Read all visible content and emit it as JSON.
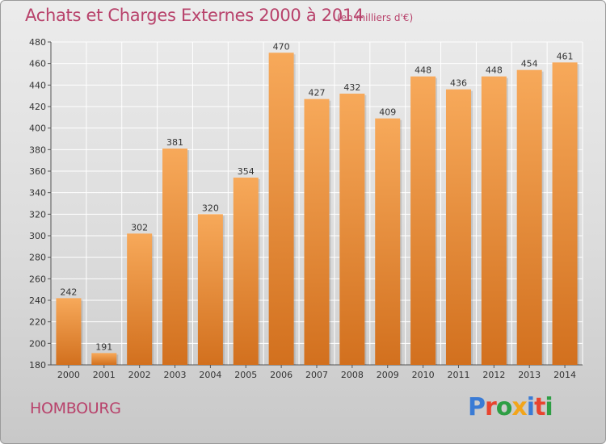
{
  "header": {
    "title": "Achats et Charges Externes 2000 à 2014",
    "subtitle": "(en milliers d'€)"
  },
  "footer": {
    "city": "HOMBOURG",
    "logo_text": "Proxiti",
    "logo_colors": [
      "#3a7bd5",
      "#e8442e",
      "#2e9e44",
      "#f2a51a",
      "#3a7bd5",
      "#e8442e",
      "#2e9e44"
    ]
  },
  "colors": {
    "title": "#b8426b",
    "bar_top": "#f7a95a",
    "bar_bottom": "#d2701e",
    "grid": "#ffffff"
  },
  "chart_data": {
    "type": "bar",
    "categories": [
      "2000",
      "2001",
      "2002",
      "2003",
      "2004",
      "2005",
      "2006",
      "2007",
      "2008",
      "2009",
      "2010",
      "2011",
      "2012",
      "2013",
      "2014"
    ],
    "values": [
      242,
      191,
      302,
      381,
      320,
      354,
      470,
      427,
      432,
      409,
      448,
      436,
      448,
      454,
      461
    ],
    "ylim": [
      180,
      480
    ],
    "yticks": [
      180,
      200,
      220,
      240,
      260,
      280,
      300,
      320,
      340,
      360,
      380,
      400,
      420,
      440,
      460,
      480
    ],
    "grid": true,
    "data_labels": true
  }
}
